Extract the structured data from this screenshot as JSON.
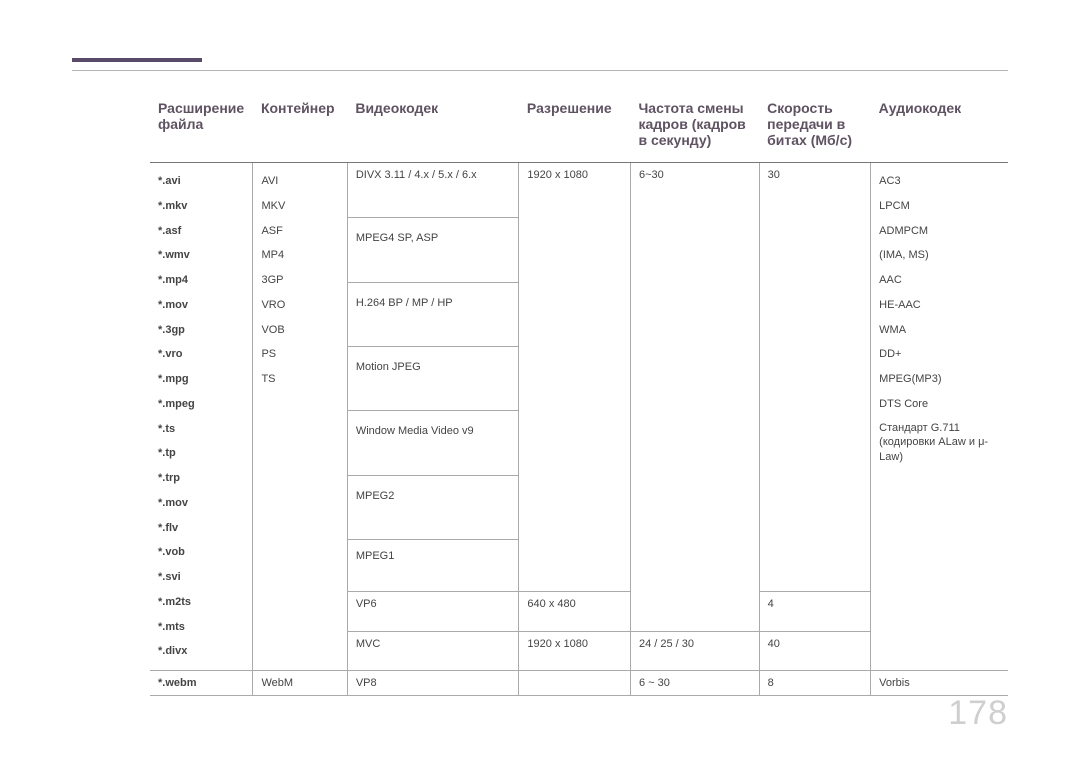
{
  "page_number": "178",
  "headers": {
    "ext": "Расширение файла",
    "container": "Контейнер",
    "vcodec": "Видеокодек",
    "resolution": "Разрешение",
    "fps": "Частота смены кадров (кадров в секунду)",
    "bitrate": "Скорость передачи в битах (Мб/с)",
    "acodec": "Аудиокодек"
  },
  "ext_list": [
    "*.avi",
    "*.mkv",
    "*.asf",
    "*.wmv",
    "*.mp4",
    "*.mov",
    "*.3gp",
    "*.vro",
    "*.mpg",
    "*.mpeg",
    "*.ts",
    "*.tp",
    "*.trp",
    "*.mov",
    "*.flv",
    "*.vob",
    "*.svi",
    "*.m2ts",
    "*.mts",
    "*.divx"
  ],
  "container_list": [
    "AVI",
    "MKV",
    "ASF",
    "MP4",
    "3GP",
    "VRO",
    "VOB",
    "PS",
    "TS"
  ],
  "vcodec_rows": [
    "DIVX 3.11 / 4.x / 5.x / 6.x",
    "MPEG4 SP, ASP",
    "H.264 BP / MP / HP",
    "Motion JPEG",
    "Window Media Video v9",
    "MPEG2",
    "MPEG1"
  ],
  "block1": {
    "resolution": "1920 x 1080",
    "fps": "6~30",
    "bitrate": "30"
  },
  "audio_codec_list": [
    "AC3",
    "LPCM",
    "ADMPCM",
    "(IMA, MS)",
    "AAC",
    "HE-AAC",
    "WMA",
    "DD+",
    "MPEG(MP3)",
    "DTS Core"
  ],
  "audio_codec_extra": "Стандарт G.711 (кодировки ALaw и μ-Law)",
  "vp6": {
    "codec": "VP6",
    "resolution": "640 x 480",
    "bitrate": "4"
  },
  "mvc": {
    "codec": "MVC",
    "resolution": "1920 x 1080",
    "fps": "24 / 25 / 30",
    "bitrate": "40"
  },
  "webm": {
    "ext": "*.webm",
    "container": "WebM",
    "codec": "VP8",
    "fps": "6 ~ 30",
    "bitrate": "8",
    "acodec": "Vorbis"
  }
}
